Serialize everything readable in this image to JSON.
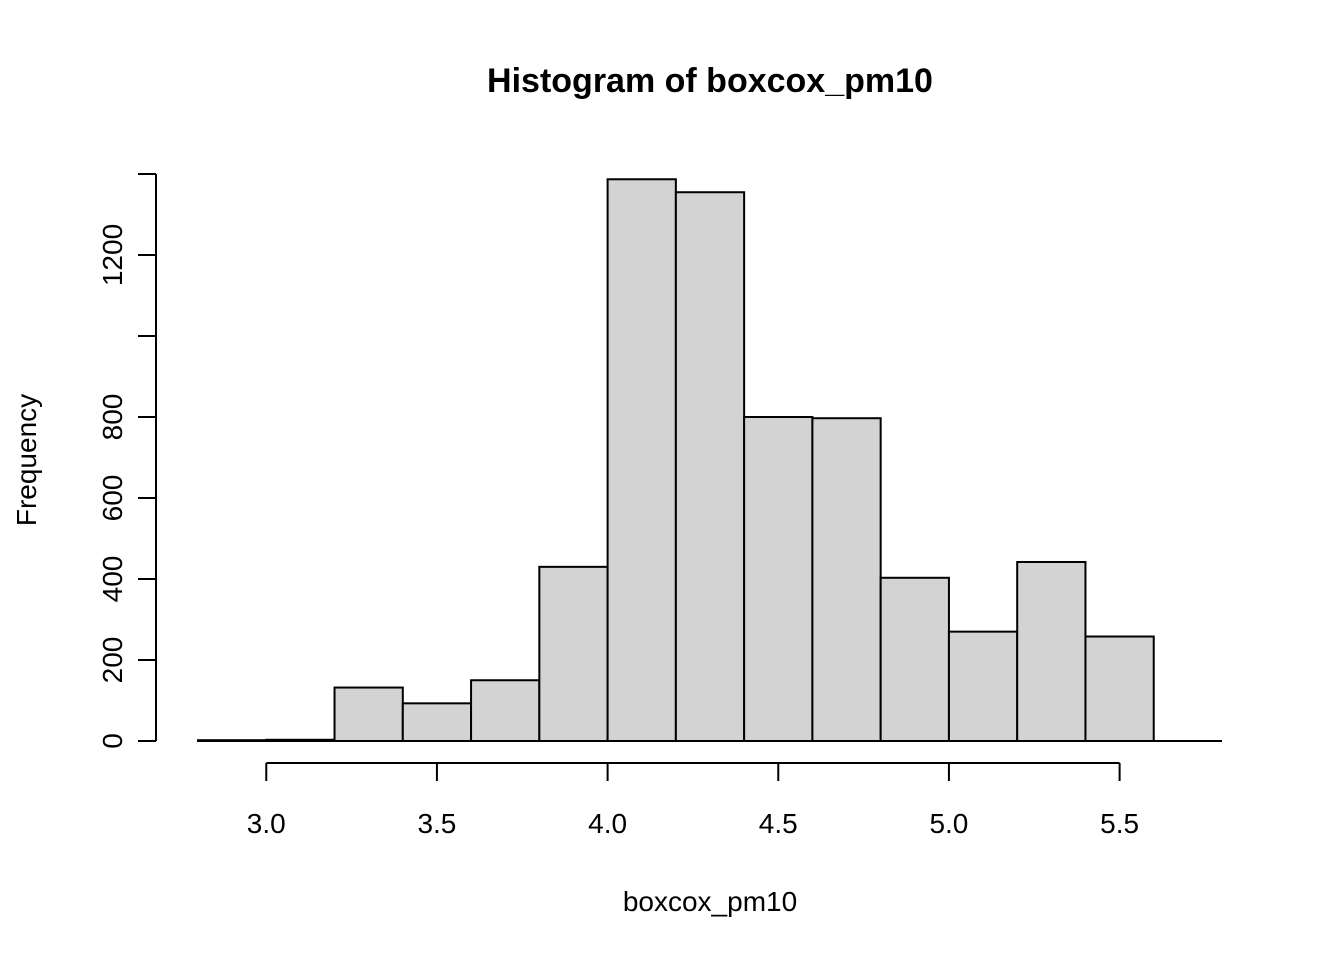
{
  "chart_data": {
    "type": "bar",
    "title": "Histogram of boxcox_pm10",
    "xlabel": "boxcox_pm10",
    "ylabel": "Frequency",
    "bar_color": "#d3d3d3",
    "border_color": "#000000",
    "xlim": [
      2.8,
      5.8
    ],
    "ylim": [
      0,
      1400
    ],
    "x_ticks": [
      3.0,
      3.5,
      4.0,
      4.5,
      5.0,
      5.5
    ],
    "x_tick_labels": [
      "3.0",
      "3.5",
      "4.0",
      "4.5",
      "5.0",
      "5.5"
    ],
    "y_ticks": [
      0,
      200,
      400,
      600,
      800,
      1000,
      1200,
      1400
    ],
    "y_tick_labels": [
      "0",
      "200",
      "400",
      "600",
      "800",
      "",
      "1200",
      ""
    ],
    "grid": false,
    "bins": [
      {
        "start": 2.8,
        "end": 3.0,
        "count": 2
      },
      {
        "start": 3.0,
        "end": 3.2,
        "count": 3
      },
      {
        "start": 3.2,
        "end": 3.4,
        "count": 132
      },
      {
        "start": 3.4,
        "end": 3.6,
        "count": 93
      },
      {
        "start": 3.6,
        "end": 3.8,
        "count": 150
      },
      {
        "start": 3.8,
        "end": 4.0,
        "count": 430
      },
      {
        "start": 4.0,
        "end": 4.2,
        "count": 1387
      },
      {
        "start": 4.2,
        "end": 4.4,
        "count": 1355
      },
      {
        "start": 4.4,
        "end": 4.6,
        "count": 800
      },
      {
        "start": 4.6,
        "end": 4.8,
        "count": 797
      },
      {
        "start": 4.8,
        "end": 5.0,
        "count": 403
      },
      {
        "start": 5.0,
        "end": 5.2,
        "count": 270
      },
      {
        "start": 5.2,
        "end": 5.4,
        "count": 442
      },
      {
        "start": 5.4,
        "end": 5.6,
        "count": 258
      }
    ]
  }
}
